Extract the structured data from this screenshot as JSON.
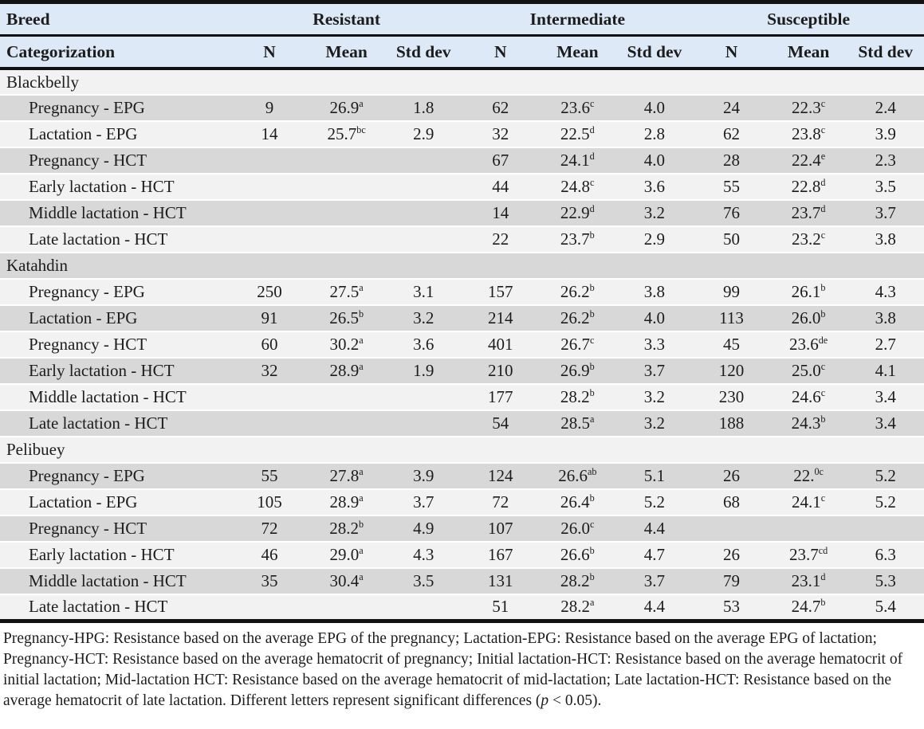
{
  "colors": {
    "header_bg": "#dde9f6",
    "stripe_light": "#f2f2f2",
    "stripe_gray": "#d8d8d8",
    "rule": "#111111"
  },
  "table": {
    "header": {
      "col1_row1": "Breed",
      "col1_row2": "Categorization",
      "groups": [
        {
          "label": "Resistant"
        },
        {
          "label": "Intermediate"
        },
        {
          "label": "Susceptible"
        }
      ],
      "subheaders": [
        "N",
        "Mean",
        "Std dev"
      ]
    },
    "sections": [
      {
        "name": "Blackbelly",
        "rows": [
          {
            "label": "Pregnancy - EPG",
            "cells": [
              "9",
              "26.9^a",
              "1.8",
              "62",
              "23.6^c",
              "4.0",
              "24",
              "22.3^c",
              "2.4"
            ]
          },
          {
            "label": "Lactation - EPG",
            "cells": [
              "14",
              "25.7^bc",
              "2.9",
              "32",
              "22.5^d",
              "2.8",
              "62",
              "23.8^c",
              "3.9"
            ]
          },
          {
            "label": "Pregnancy - HCT",
            "cells": [
              "",
              "",
              "",
              "67",
              "24.1^d",
              "4.0",
              "28",
              "22.4^e",
              "2.3"
            ]
          },
          {
            "label": "Early lactation - HCT",
            "cells": [
              "",
              "",
              "",
              "44",
              "24.8^c",
              "3.6",
              "55",
              "22.8^d",
              "3.5"
            ]
          },
          {
            "label": "Middle lactation - HCT",
            "cells": [
              "",
              "",
              "",
              "14",
              "22.9^d",
              "3.2",
              "76",
              "23.7^d",
              "3.7"
            ]
          },
          {
            "label": "Late lactation - HCT",
            "cells": [
              "",
              "",
              "",
              "22",
              "23.7^b",
              "2.9",
              "50",
              "23.2^c",
              "3.8"
            ]
          }
        ]
      },
      {
        "name": "Katahdin",
        "rows": [
          {
            "label": "Pregnancy - EPG",
            "cells": [
              "250",
              "27.5^a",
              "3.1",
              "157",
              "26.2^b",
              "3.8",
              "99",
              "26.1^b",
              "4.3"
            ]
          },
          {
            "label": "Lactation - EPG",
            "cells": [
              "91",
              "26.5^b",
              "3.2",
              "214",
              "26.2^b",
              "4.0",
              "113",
              "26.0^b",
              "3.8"
            ]
          },
          {
            "label": "Pregnancy - HCT",
            "cells": [
              "60",
              "30.2^a",
              "3.6",
              "401",
              "26.7^c",
              "3.3",
              "45",
              "23.6^de",
              "2.7"
            ]
          },
          {
            "label": "Early lactation - HCT",
            "cells": [
              "32",
              "28.9^a",
              "1.9",
              "210",
              "26.9^b",
              "3.7",
              "120",
              "25.0^c",
              "4.1"
            ]
          },
          {
            "label": "Middle lactation - HCT",
            "cells": [
              "",
              "",
              "",
              "177",
              "28.2^b",
              "3.2",
              "230",
              "24.6^c",
              "3.4"
            ]
          },
          {
            "label": "Late lactation - HCT",
            "cells": [
              "",
              "",
              "",
              "54",
              "28.5^a",
              "3.2",
              "188",
              "24.3^b",
              "3.4"
            ]
          }
        ]
      },
      {
        "name": "Pelibuey",
        "rows": [
          {
            "label": "Pregnancy - EPG",
            "cells": [
              "55",
              "27.8^a",
              "3.9",
              "124",
              "26.6^ab",
              "5.1",
              "26",
              "22.^0c",
              "5.2"
            ]
          },
          {
            "label": "Lactation - EPG",
            "cells": [
              "105",
              "28.9^a",
              "3.7",
              "72",
              "26.4^b",
              "5.2",
              "68",
              "24.1^c",
              "5.2"
            ]
          },
          {
            "label": "Pregnancy - HCT",
            "cells": [
              "72",
              "28.2^b",
              "4.9",
              "107",
              "26.0^c",
              "4.4",
              "",
              "",
              ""
            ]
          },
          {
            "label": "Early lactation - HCT",
            "cells": [
              "46",
              "29.0^a",
              "4.3",
              "167",
              "26.6^b",
              "4.7",
              "26",
              "23.7^cd",
              "6.3"
            ]
          },
          {
            "label": "Middle lactation - HCT",
            "cells": [
              "35",
              "30.4^a",
              "3.5",
              "131",
              "28.2^b",
              "3.7",
              "79",
              "23.1^d",
              "5.3"
            ]
          },
          {
            "label": "Late lactation - HCT",
            "cells": [
              "",
              "",
              "",
              "51",
              "28.2^a",
              "4.4",
              "53",
              "24.7^b",
              "5.4"
            ]
          }
        ]
      }
    ]
  },
  "footnote": {
    "text": "Pregnancy-HPG: Resistance based on the average EPG of the pregnancy; Lactation-EPG: Resistance based on the average EPG of lactation; Pregnancy-HCT: Resistance based on the average hematocrit of pregnancy; Initial lactation-HCT: Resistance based on the average hematocrit of initial lactation; Mid-lactation HCT: Resistance based on the average hematocrit of mid-lactation; Late lactation-HCT: Resistance based on the average hematocrit of late lactation. Different letters represent significant differences (",
    "p_italic": "p",
    "suffix": " < 0.05)."
  }
}
